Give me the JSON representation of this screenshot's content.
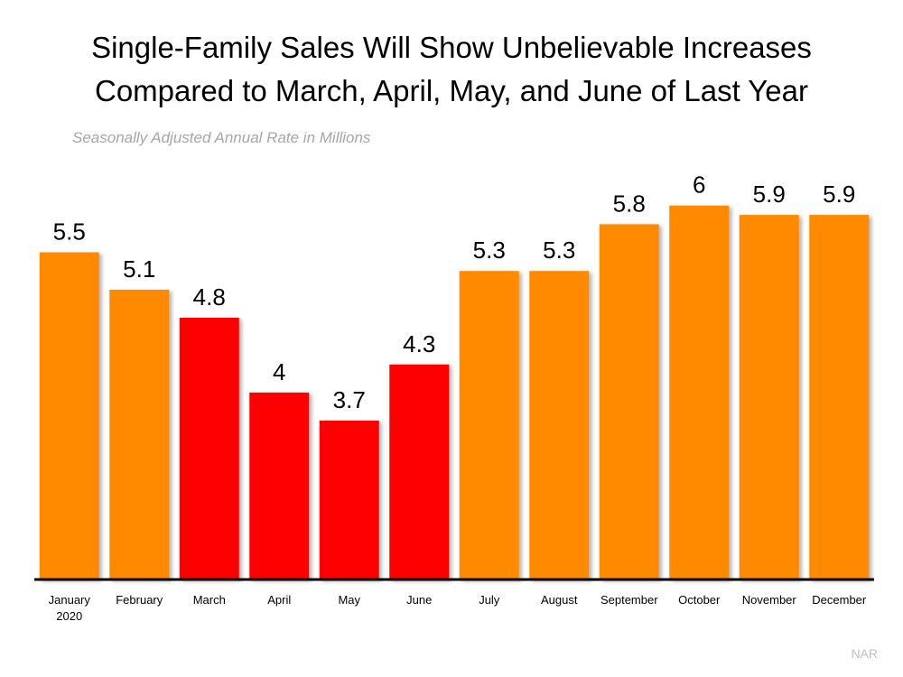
{
  "chart_data": {
    "type": "bar",
    "title": [
      "Single-Family Sales Will Show Unbelievable Increases",
      "Compared to March, April, May, and June of Last Year"
    ],
    "subtitle": "Seasonally Adjusted Annual Rate in Millions",
    "source": "NAR",
    "categories": [
      "January 2020",
      "February",
      "March",
      "April",
      "May",
      "June",
      "July",
      "August",
      "September",
      "October",
      "November",
      "December"
    ],
    "values": [
      5.5,
      5.1,
      4.8,
      4,
      3.7,
      4.3,
      5.3,
      5.3,
      5.8,
      6,
      5.9,
      5.9
    ],
    "colors": [
      "#ff8a00",
      "#ff8a00",
      "#ff0000",
      "#ff0000",
      "#ff0000",
      "#ff0000",
      "#ff8a00",
      "#ff8a00",
      "#ff8a00",
      "#ff8a00",
      "#ff8a00",
      "#ff8a00"
    ],
    "ylim": [
      2,
      6.2
    ]
  }
}
